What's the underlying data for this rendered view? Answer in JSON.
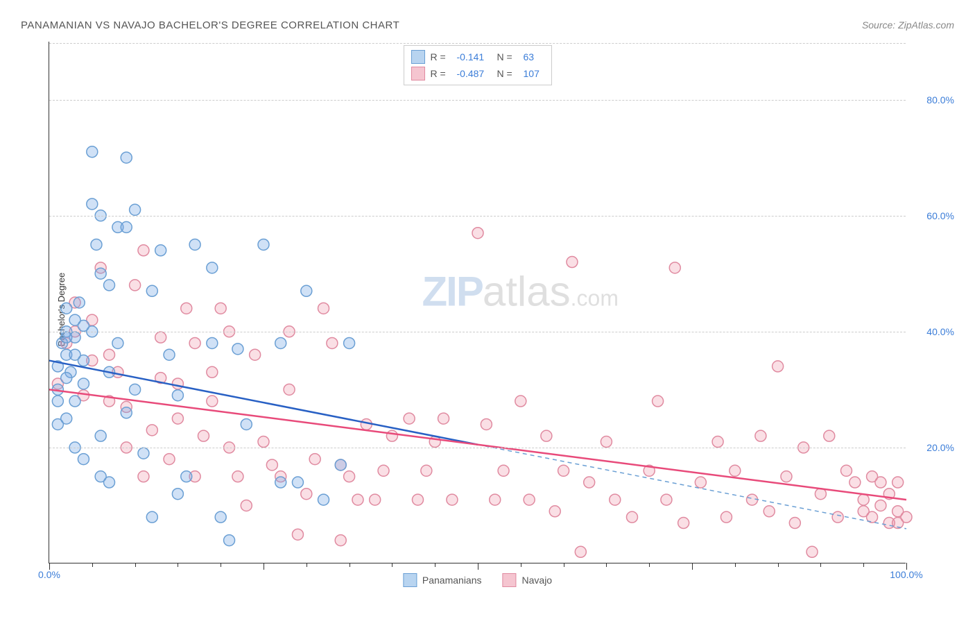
{
  "title": "PANAMANIAN VS NAVAJO BACHELOR'S DEGREE CORRELATION CHART",
  "source": "Source: ZipAtlas.com",
  "ylabel": "Bachelor's Degree",
  "watermark": {
    "part1": "ZIP",
    "part2": "atlas",
    "suffix": ".com"
  },
  "chart": {
    "type": "scatter",
    "xlim": [
      0,
      100
    ],
    "ylim": [
      0,
      90
    ],
    "ytick_positions": [
      20,
      40,
      60,
      80
    ],
    "ytick_labels": [
      "20.0%",
      "40.0%",
      "60.0%",
      "80.0%"
    ],
    "xtick_positions": [
      0,
      25,
      50,
      75,
      100
    ],
    "x_axis_labels": {
      "left": "0.0%",
      "right": "100.0%"
    },
    "xtick_minor": [
      5,
      10,
      15,
      20,
      30,
      35,
      40,
      45,
      55,
      60,
      65,
      70,
      80,
      85,
      90,
      95
    ],
    "background_color": "#ffffff",
    "grid_color": "#cccccc",
    "marker_radius": 8,
    "marker_stroke_width": 1.5,
    "axis_color": "#333333"
  },
  "series": [
    {
      "name": "Panamanians",
      "fill": "rgba(120,170,230,0.35)",
      "stroke": "#6a9fd4",
      "swatch_fill": "#b8d4f0",
      "swatch_border": "#6a9fd4",
      "R": "-0.141",
      "N": "63",
      "trend": {
        "x1": 0,
        "y1": 35,
        "x2": 50,
        "y2": 20.5,
        "solid_color": "#2860c4"
      },
      "trend_dash": {
        "x1": 50,
        "y1": 20.5,
        "x2": 100,
        "y2": 6,
        "color": "#6a9fd4"
      },
      "points": [
        [
          1,
          34
        ],
        [
          1.5,
          38
        ],
        [
          2,
          40
        ],
        [
          2,
          36
        ],
        [
          2.5,
          33
        ],
        [
          3,
          42
        ],
        [
          3,
          28
        ],
        [
          3.5,
          45
        ],
        [
          4,
          31
        ],
        [
          4,
          18
        ],
        [
          5,
          62
        ],
        [
          5,
          71
        ],
        [
          5.5,
          55
        ],
        [
          6,
          50
        ],
        [
          6,
          22
        ],
        [
          7,
          48
        ],
        [
          7,
          14
        ],
        [
          8,
          58
        ],
        [
          8,
          38
        ],
        [
          9,
          70
        ],
        [
          9,
          26
        ],
        [
          10,
          61
        ],
        [
          10,
          30
        ],
        [
          11,
          19
        ],
        [
          12,
          8
        ],
        [
          12,
          47
        ],
        [
          13,
          54
        ],
        [
          14,
          36
        ],
        [
          15,
          12
        ],
        [
          15,
          29
        ],
        [
          16,
          15
        ],
        [
          17,
          55
        ],
        [
          19,
          38
        ],
        [
          19,
          51
        ],
        [
          20,
          8
        ],
        [
          21,
          4
        ],
        [
          22,
          37
        ],
        [
          23,
          24
        ],
        [
          25,
          55
        ],
        [
          27,
          38
        ],
        [
          27,
          14
        ],
        [
          29,
          14
        ],
        [
          30,
          47
        ],
        [
          32,
          11
        ],
        [
          34,
          17
        ],
        [
          35,
          38
        ],
        [
          1,
          30
        ],
        [
          2,
          25
        ],
        [
          3,
          20
        ],
        [
          4,
          35
        ],
        [
          5,
          40
        ],
        [
          6,
          15
        ],
        [
          7,
          33
        ],
        [
          2,
          44
        ],
        [
          3,
          39
        ],
        [
          1,
          28
        ],
        [
          1,
          24
        ],
        [
          2,
          32
        ],
        [
          2,
          39
        ],
        [
          3,
          36
        ],
        [
          4,
          41
        ],
        [
          9,
          58
        ],
        [
          6,
          60
        ]
      ]
    },
    {
      "name": "Navajo",
      "fill": "rgba(240,150,170,0.3)",
      "stroke": "#e08aa0",
      "swatch_fill": "#f5c5d0",
      "swatch_border": "#e08aa0",
      "R": "-0.487",
      "N": "107",
      "trend": {
        "x1": 0,
        "y1": 30,
        "x2": 100,
        "y2": 11,
        "solid_color": "#e84a7a"
      },
      "points": [
        [
          1,
          31
        ],
        [
          2,
          38
        ],
        [
          3,
          40
        ],
        [
          4,
          29
        ],
        [
          5,
          42
        ],
        [
          6,
          51
        ],
        [
          7,
          36
        ],
        [
          8,
          33
        ],
        [
          9,
          27
        ],
        [
          10,
          48
        ],
        [
          11,
          54
        ],
        [
          12,
          23
        ],
        [
          13,
          39
        ],
        [
          14,
          18
        ],
        [
          15,
          31
        ],
        [
          16,
          44
        ],
        [
          17,
          15
        ],
        [
          18,
          22
        ],
        [
          19,
          33
        ],
        [
          20,
          44
        ],
        [
          21,
          40
        ],
        [
          22,
          15
        ],
        [
          23,
          10
        ],
        [
          24,
          36
        ],
        [
          25,
          21
        ],
        [
          26,
          17
        ],
        [
          27,
          15
        ],
        [
          28,
          30
        ],
        [
          29,
          5
        ],
        [
          30,
          12
        ],
        [
          31,
          18
        ],
        [
          32,
          44
        ],
        [
          33,
          38
        ],
        [
          34,
          17
        ],
        [
          35,
          15
        ],
        [
          36,
          11
        ],
        [
          37,
          24
        ],
        [
          38,
          11
        ],
        [
          39,
          16
        ],
        [
          40,
          22
        ],
        [
          42,
          25
        ],
        [
          43,
          11
        ],
        [
          44,
          16
        ],
        [
          45,
          21
        ],
        [
          46,
          25
        ],
        [
          47,
          11
        ],
        [
          50,
          57
        ],
        [
          51,
          24
        ],
        [
          52,
          11
        ],
        [
          53,
          16
        ],
        [
          55,
          28
        ],
        [
          56,
          11
        ],
        [
          58,
          22
        ],
        [
          59,
          9
        ],
        [
          60,
          16
        ],
        [
          61,
          52
        ],
        [
          62,
          2
        ],
        [
          63,
          14
        ],
        [
          65,
          21
        ],
        [
          66,
          11
        ],
        [
          68,
          8
        ],
        [
          70,
          16
        ],
        [
          71,
          28
        ],
        [
          72,
          11
        ],
        [
          73,
          51
        ],
        [
          74,
          7
        ],
        [
          76,
          14
        ],
        [
          78,
          21
        ],
        [
          79,
          8
        ],
        [
          80,
          16
        ],
        [
          82,
          11
        ],
        [
          83,
          22
        ],
        [
          84,
          9
        ],
        [
          85,
          34
        ],
        [
          86,
          15
        ],
        [
          87,
          7
        ],
        [
          88,
          20
        ],
        [
          89,
          2
        ],
        [
          90,
          12
        ],
        [
          91,
          22
        ],
        [
          92,
          8
        ],
        [
          93,
          16
        ],
        [
          94,
          14
        ],
        [
          95,
          11
        ],
        [
          95,
          9
        ],
        [
          96,
          15
        ],
        [
          96,
          8
        ],
        [
          97,
          14
        ],
        [
          97,
          10
        ],
        [
          98,
          7
        ],
        [
          98,
          12
        ],
        [
          99,
          9
        ],
        [
          99,
          7
        ],
        [
          99,
          14
        ],
        [
          100,
          8
        ],
        [
          3,
          45
        ],
        [
          5,
          35
        ],
        [
          7,
          28
        ],
        [
          9,
          20
        ],
        [
          11,
          15
        ],
        [
          13,
          32
        ],
        [
          15,
          25
        ],
        [
          17,
          38
        ],
        [
          19,
          28
        ],
        [
          21,
          20
        ],
        [
          28,
          40
        ],
        [
          34,
          4
        ]
      ]
    }
  ],
  "bottom_legend": [
    {
      "label": "Panamanians",
      "fill": "#b8d4f0",
      "border": "#6a9fd4"
    },
    {
      "label": "Navajo",
      "fill": "#f5c5d0",
      "border": "#e08aa0"
    }
  ]
}
